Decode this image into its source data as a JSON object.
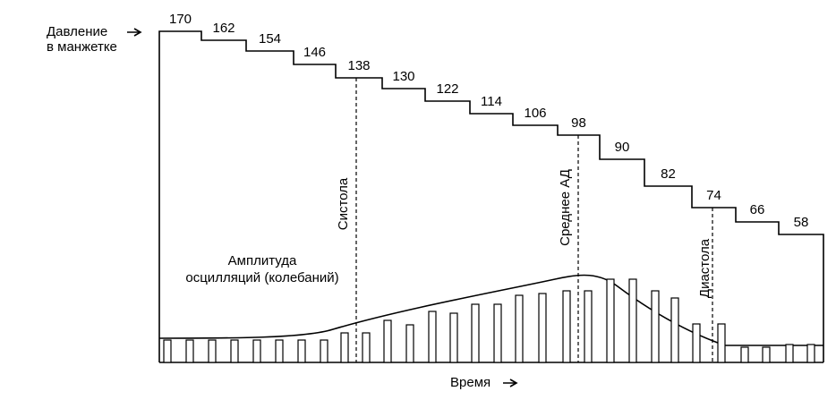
{
  "axis_labels": {
    "pressure": [
      "Давление",
      "в манжетке"
    ],
    "time": "Время"
  },
  "steps": [
    "170",
    "162",
    "154",
    "146",
    "138",
    "130",
    "122",
    "114",
    "106",
    "98",
    "90",
    "82",
    "74",
    "66",
    "58"
  ],
  "markers": {
    "systole": "Систола",
    "mean": "Среднее АД",
    "diastole": "Диастола"
  },
  "amplitude_label": [
    "Амплитуда",
    "осцилляций (колебаний)"
  ]
}
